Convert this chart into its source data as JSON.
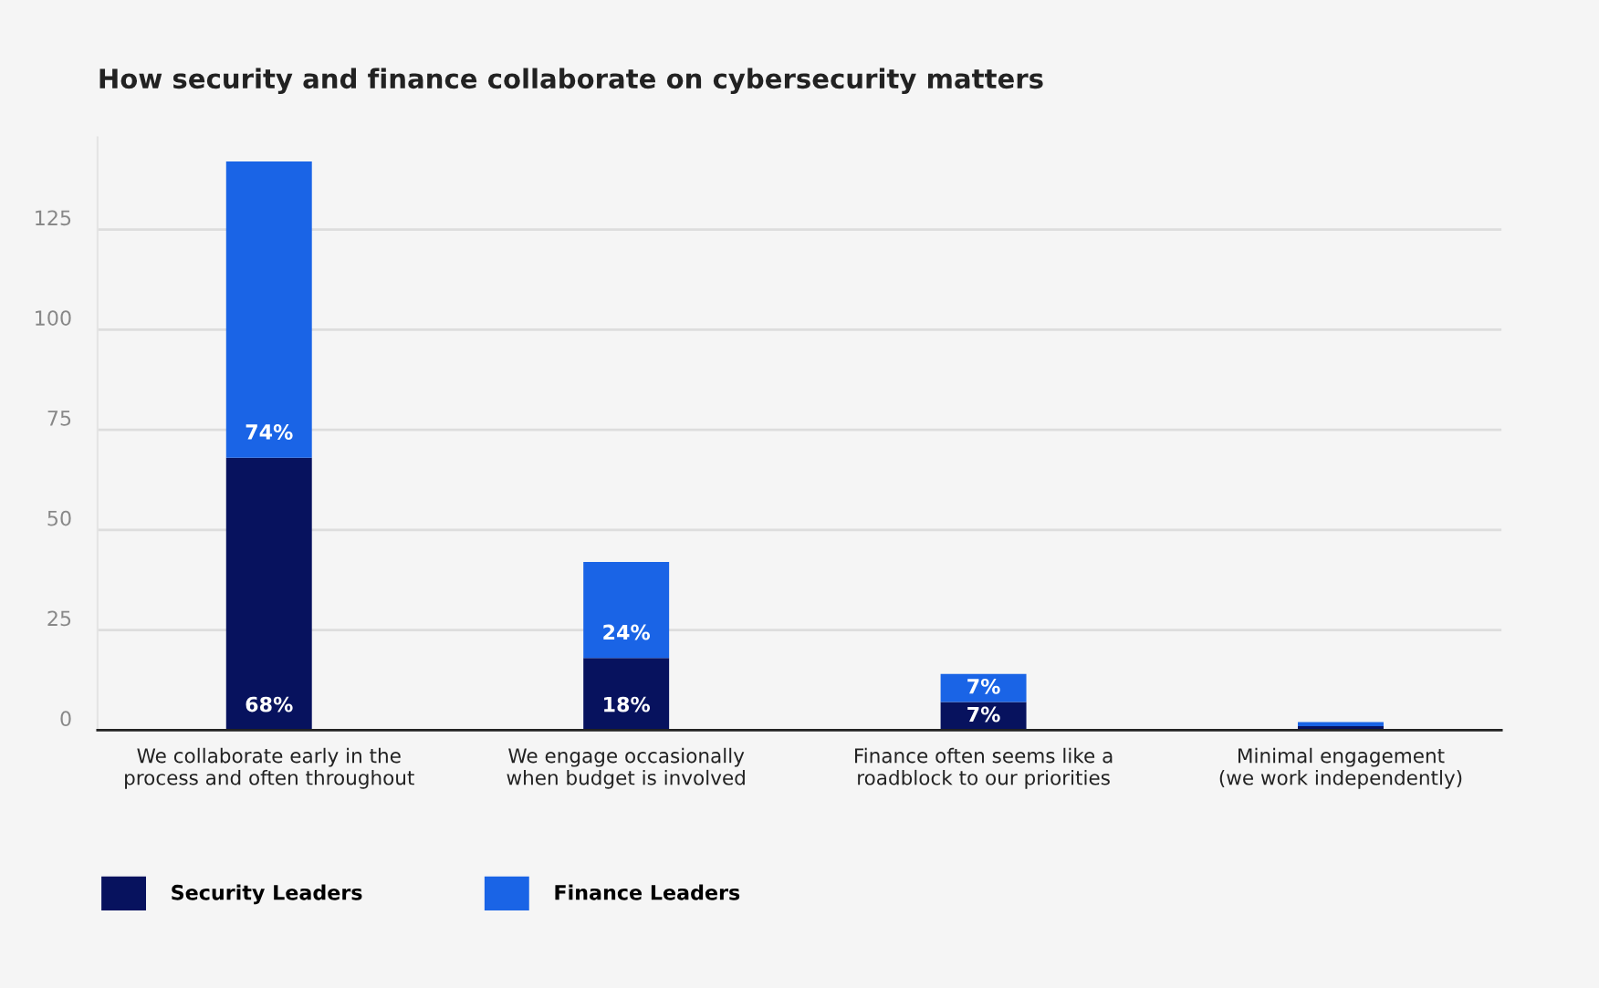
{
  "chart_data": {
    "type": "bar",
    "title": "How security and finance collaborate on cybersecurity matters",
    "categories": [
      "We collaborate early in the\nprocess and often throughout",
      "We engage occasionally\nwhen budget is involved",
      "Finance often seems like a\nroadblock to our priorities",
      "Minimal engagement\n(we work independently)"
    ],
    "stacked": true,
    "series": [
      {
        "name": "Security Leaders",
        "color": "#07125e",
        "values": [
          68,
          18,
          7,
          1
        ],
        "value_labels": [
          "68%",
          "18%",
          "7%",
          null
        ]
      },
      {
        "name": "Finance Leaders",
        "color": "#1a64e6",
        "values": [
          74,
          24,
          7,
          1
        ],
        "value_labels": [
          "74%",
          "24%",
          "7%",
          null
        ]
      }
    ],
    "ylim": [
      0,
      148
    ],
    "yticks": [
      0,
      25,
      50,
      75,
      100,
      125
    ],
    "grid": "y",
    "legend": "bottom left"
  }
}
